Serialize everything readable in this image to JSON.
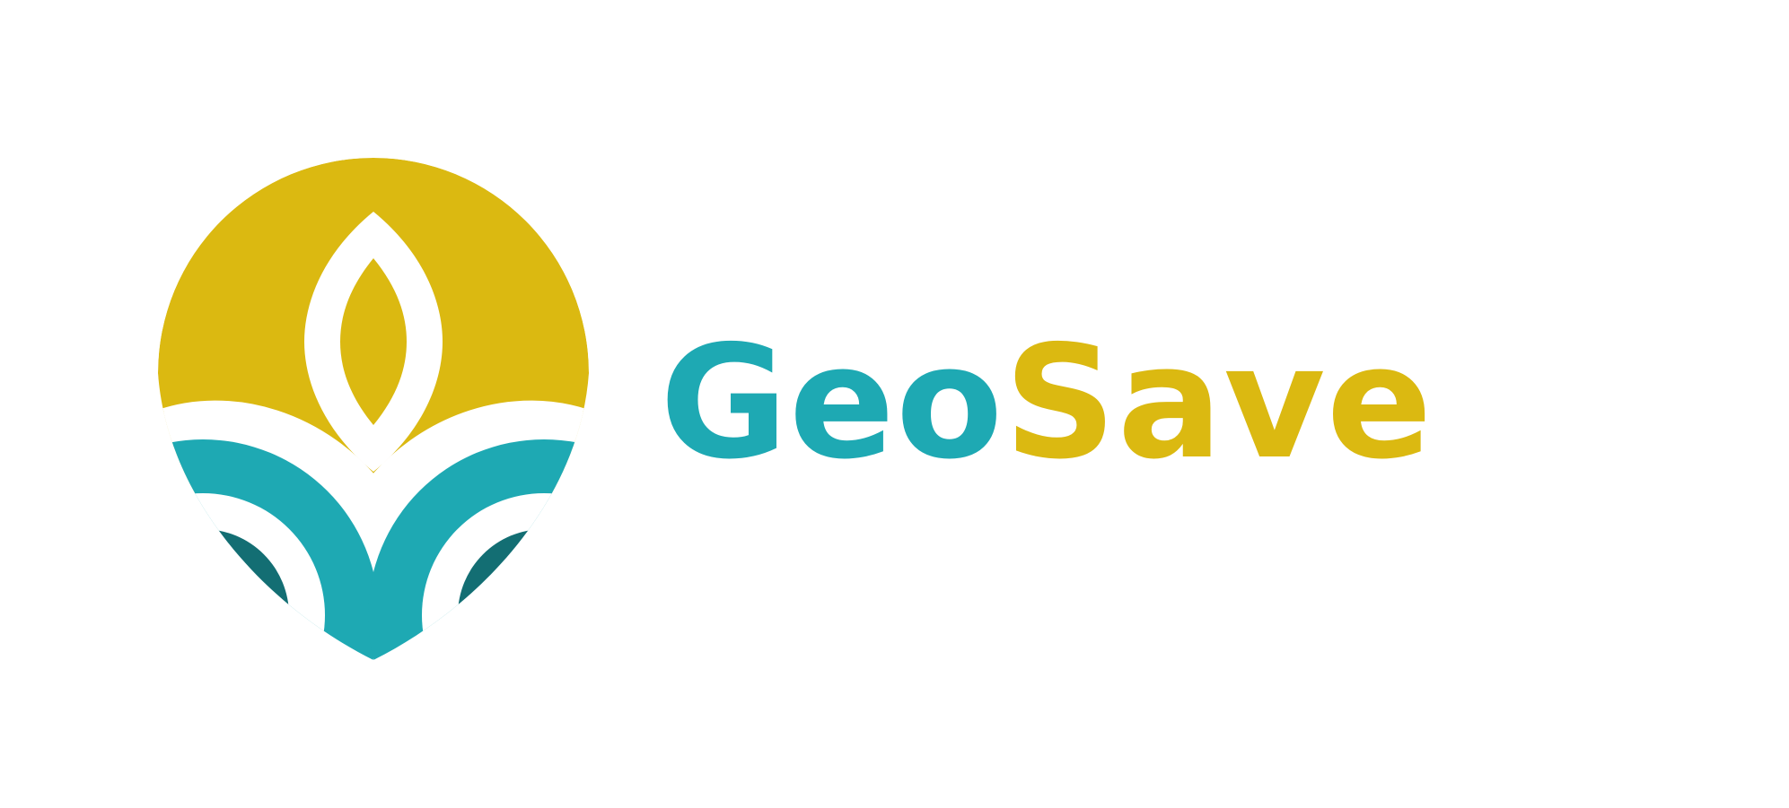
{
  "brand": {
    "name_part_1": "Geo",
    "name_part_2": "Save"
  },
  "colors": {
    "primary_gold": "#DBB911",
    "primary_teal": "#1EA9B3",
    "dark_teal": "#136E73",
    "background": "#FFFFFF"
  },
  "icons": {
    "logo_mark": "leaf-sun-emblem-icon",
    "leaf": "leaf-icon"
  }
}
